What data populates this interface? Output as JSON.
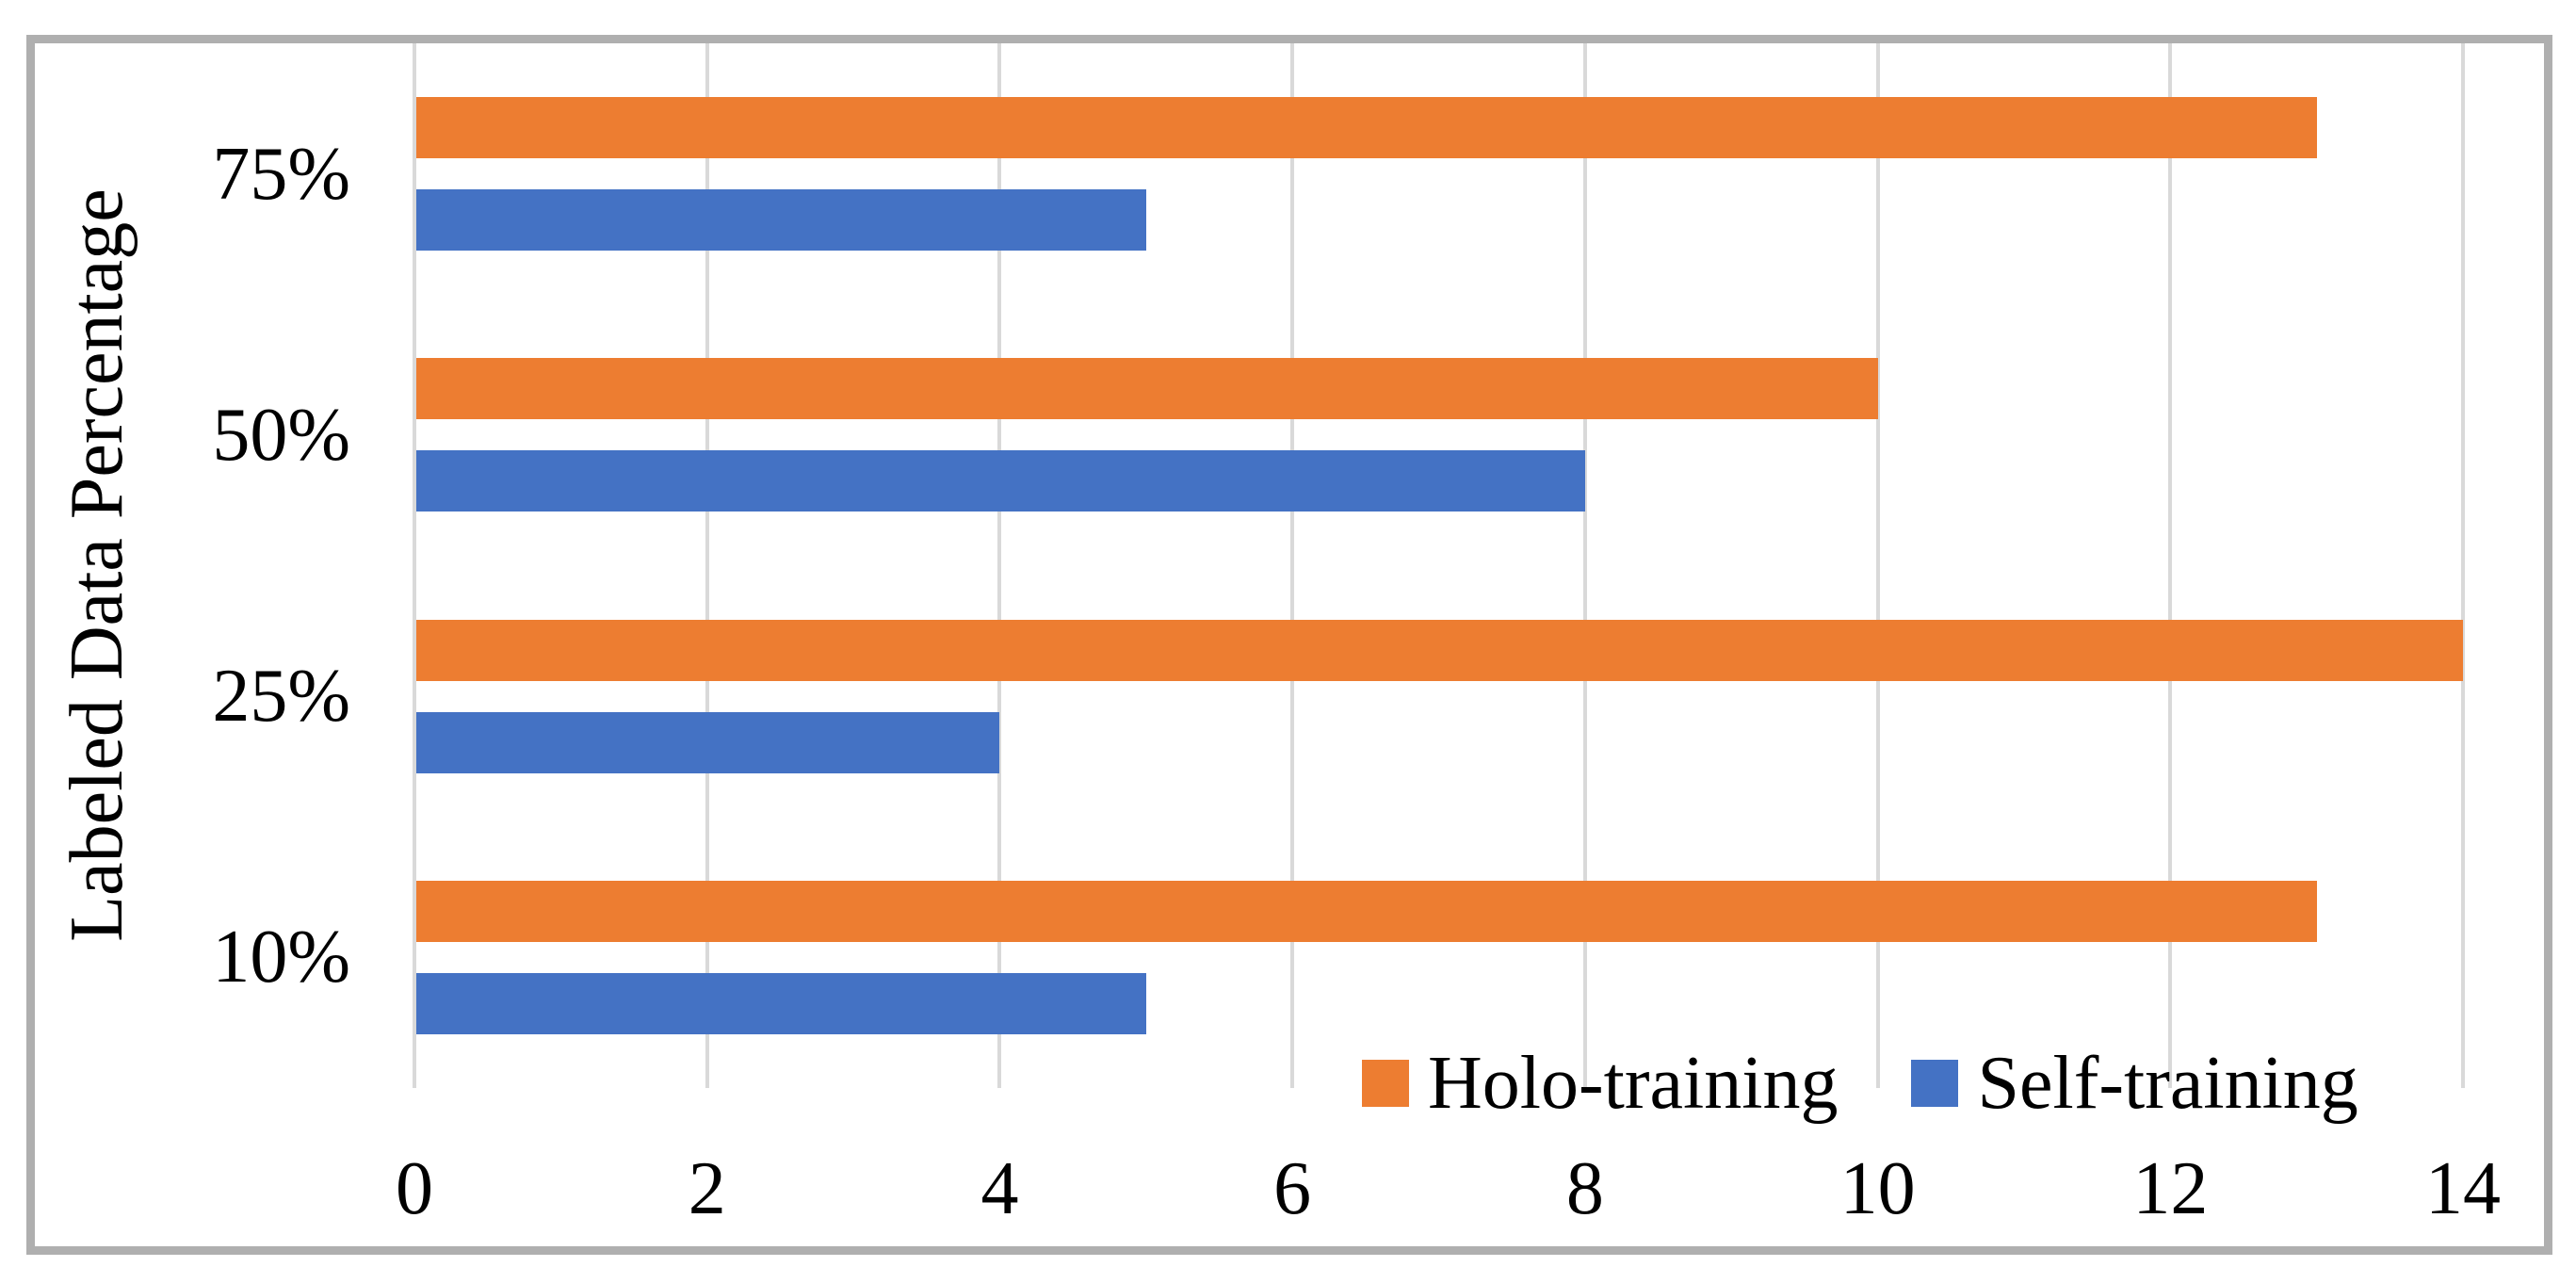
{
  "figure": {
    "background_color": "#FFFFFF",
    "border_color": "#AFAFAF"
  },
  "chart_data": {
    "type": "bar",
    "orientation": "horizontal",
    "title": "",
    "xlabel": "",
    "ylabel": "Labeled Data Percentage",
    "categories": [
      "75%",
      "50%",
      "25%",
      "10%"
    ],
    "series": [
      {
        "name": "Holo-training",
        "color": "#ED7D31",
        "values": [
          13,
          10,
          14,
          13
        ]
      },
      {
        "name": "Self-training",
        "color": "#4472C4",
        "values": [
          5,
          8,
          4,
          5
        ]
      }
    ],
    "xlim": [
      0,
      14
    ],
    "x_ticks": [
      0,
      2,
      4,
      6,
      8,
      10,
      12,
      14
    ],
    "grid": "vertical",
    "gridline_color": "#D9D9D9",
    "legend_position": "inside-bottom-right",
    "legend_labels": [
      "Holo-training",
      "Self-training"
    ]
  }
}
